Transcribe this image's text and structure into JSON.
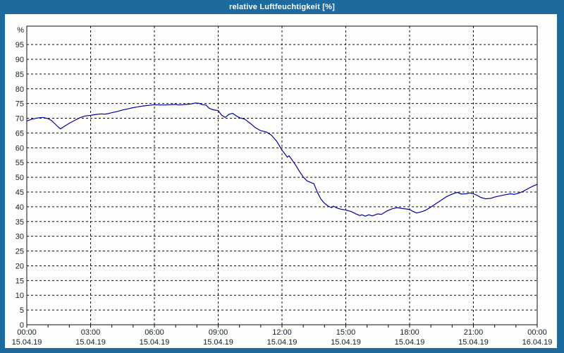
{
  "window": {
    "title": "relative Luftfeuchtigkeit [%]"
  },
  "colors": {
    "titlebar_bg": "#1d6b9e",
    "window_border": "#1d6b9e",
    "chart_bg": "#fdfefc",
    "grid_color": "#111111",
    "axis_color": "#111111",
    "label_color": "#10202e",
    "line_color": "#0000a0"
  },
  "chart_data": {
    "type": "line",
    "title": "relative Luftfeuchtigkeit [%]",
    "ylabel": "%",
    "unit_label": "%",
    "ylim": [
      0,
      100
    ],
    "ytick_step": 5,
    "y_ticks": [
      0,
      5,
      10,
      15,
      20,
      25,
      30,
      35,
      40,
      45,
      50,
      55,
      60,
      65,
      70,
      75,
      80,
      85,
      90,
      95
    ],
    "xlim_hours": [
      0,
      24
    ],
    "x_minor_tick_hours": 1,
    "x_ticks": [
      {
        "hour": 0,
        "time": "00:00",
        "date": "15.04.19"
      },
      {
        "hour": 3,
        "time": "03:00",
        "date": "15.04.19"
      },
      {
        "hour": 6,
        "time": "06:00",
        "date": "15.04.19"
      },
      {
        "hour": 9,
        "time": "09:00",
        "date": "15.04.19"
      },
      {
        "hour": 12,
        "time": "12:00",
        "date": "15.04.19"
      },
      {
        "hour": 15,
        "time": "15:00",
        "date": "15.04.19"
      },
      {
        "hour": 18,
        "time": "18:00",
        "date": "15.04.19"
      },
      {
        "hour": 21,
        "time": "21:00",
        "date": "15.04.19"
      },
      {
        "hour": 24,
        "time": "00:00",
        "date": "16.04.19"
      }
    ],
    "grid": true,
    "legend": "none",
    "series": [
      {
        "name": "relative Luftfeuchtigkeit",
        "color": "#0000a0",
        "points": [
          [
            0,
            69.1
          ],
          [
            0.25,
            69.7
          ],
          [
            0.5,
            70.1
          ],
          [
            0.75,
            70.3
          ],
          [
            1,
            69.9
          ],
          [
            1.17,
            69.2
          ],
          [
            1.33,
            68.1
          ],
          [
            1.5,
            66.9
          ],
          [
            1.58,
            66.4
          ],
          [
            1.75,
            67.2
          ],
          [
            2,
            68.3
          ],
          [
            2.25,
            69.3
          ],
          [
            2.5,
            70.2
          ],
          [
            2.75,
            70.8
          ],
          [
            3,
            71
          ],
          [
            3.25,
            71.3
          ],
          [
            3.5,
            71.5
          ],
          [
            3.67,
            71.4
          ],
          [
            3.83,
            71.6
          ],
          [
            4,
            71.9
          ],
          [
            4.25,
            72.3
          ],
          [
            4.5,
            72.8
          ],
          [
            4.75,
            73.2
          ],
          [
            5,
            73.6
          ],
          [
            5.25,
            73.9
          ],
          [
            5.5,
            74.2
          ],
          [
            5.75,
            74.4
          ],
          [
            6,
            74.6
          ],
          [
            6.25,
            74.5
          ],
          [
            6.5,
            74.5
          ],
          [
            6.75,
            74.6
          ],
          [
            7,
            74.7
          ],
          [
            7.17,
            74.5
          ],
          [
            7.33,
            74.6
          ],
          [
            7.5,
            74.7
          ],
          [
            7.75,
            74.9
          ],
          [
            7.92,
            75.2
          ],
          [
            8.08,
            75.1
          ],
          [
            8.25,
            74.6
          ],
          [
            8.42,
            74.5
          ],
          [
            8.58,
            73.4
          ],
          [
            8.75,
            72.9
          ],
          [
            9,
            72.6
          ],
          [
            9.17,
            71
          ],
          [
            9.33,
            70.3
          ],
          [
            9.5,
            71.3
          ],
          [
            9.67,
            71.7
          ],
          [
            9.83,
            70.9
          ],
          [
            10,
            70.2
          ],
          [
            10.25,
            69.7
          ],
          [
            10.5,
            68.3
          ],
          [
            10.75,
            66.8
          ],
          [
            11,
            65.8
          ],
          [
            11.25,
            65.4
          ],
          [
            11.5,
            64.3
          ],
          [
            11.75,
            62.2
          ],
          [
            12,
            59.2
          ],
          [
            12.17,
            57.6
          ],
          [
            12.25,
            56.8
          ],
          [
            12.33,
            57.3
          ],
          [
            12.5,
            55.6
          ],
          [
            12.67,
            53.8
          ],
          [
            12.83,
            51.9
          ],
          [
            13,
            50.1
          ],
          [
            13.17,
            48.8
          ],
          [
            13.33,
            48.3
          ],
          [
            13.5,
            47.8
          ],
          [
            13.67,
            44.8
          ],
          [
            13.83,
            42.6
          ],
          [
            14,
            41.2
          ],
          [
            14.17,
            40.2
          ],
          [
            14.33,
            39.7
          ],
          [
            14.42,
            40.2
          ],
          [
            14.58,
            39.6
          ],
          [
            14.75,
            39.2
          ],
          [
            15,
            38.9
          ],
          [
            15.25,
            38.4
          ],
          [
            15.5,
            37.5
          ],
          [
            15.67,
            37
          ],
          [
            15.75,
            37.3
          ],
          [
            15.92,
            36.8
          ],
          [
            16.08,
            37.3
          ],
          [
            16.25,
            36.9
          ],
          [
            16.5,
            37.6
          ],
          [
            16.67,
            37.4
          ],
          [
            16.92,
            38.5
          ],
          [
            17.17,
            39.3
          ],
          [
            17.42,
            39.7
          ],
          [
            17.67,
            39.4
          ],
          [
            18,
            39.1
          ],
          [
            18.17,
            38.4
          ],
          [
            18.33,
            37.9
          ],
          [
            18.5,
            38.2
          ],
          [
            18.75,
            38.8
          ],
          [
            19,
            39.9
          ],
          [
            19.25,
            41.1
          ],
          [
            19.5,
            42.3
          ],
          [
            19.75,
            43.5
          ],
          [
            20,
            44.3
          ],
          [
            20.25,
            44.9
          ],
          [
            20.42,
            44.3
          ],
          [
            20.67,
            44.4
          ],
          [
            20.83,
            44.7
          ],
          [
            21,
            44.4
          ],
          [
            21.17,
            43.9
          ],
          [
            21.33,
            43.2
          ],
          [
            21.58,
            42.7
          ],
          [
            21.83,
            42.9
          ],
          [
            22,
            43.3
          ],
          [
            22.25,
            43.7
          ],
          [
            22.5,
            44.1
          ],
          [
            22.75,
            44.4
          ],
          [
            22.92,
            44.2
          ],
          [
            23.08,
            44.5
          ],
          [
            23.33,
            45.2
          ],
          [
            23.58,
            46.2
          ],
          [
            23.83,
            47.1
          ],
          [
            24,
            47.6
          ]
        ]
      }
    ]
  }
}
